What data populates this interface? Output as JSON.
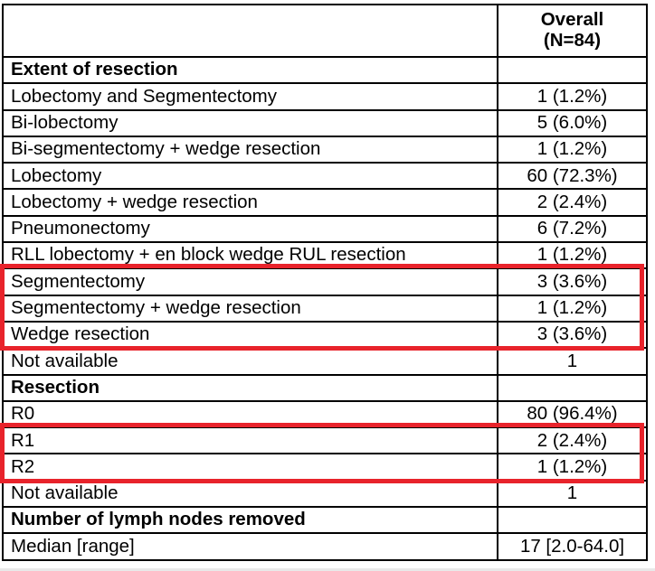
{
  "table": {
    "header": {
      "label": "",
      "value": "Overall\n(N=84)"
    },
    "rows": [
      {
        "label": "Extent of resection",
        "value": "",
        "bold": true,
        "group": null
      },
      {
        "label": "Lobectomy and Segmentectomy",
        "value": "1 (1.2%)",
        "bold": false,
        "group": null
      },
      {
        "label": "Bi-lobectomy",
        "value": "5 (6.0%)",
        "bold": false,
        "group": null
      },
      {
        "label": "Bi-segmentectomy + wedge resection",
        "value": "1 (1.2%)",
        "bold": false,
        "group": null
      },
      {
        "label": "Lobectomy",
        "value": "60 (72.3%)",
        "bold": false,
        "group": null
      },
      {
        "label": "Lobectomy + wedge resection",
        "value": "2 (2.4%)",
        "bold": false,
        "group": null
      },
      {
        "label": "Pneumonectomy",
        "value": "6 (7.2%)",
        "bold": false,
        "group": null
      },
      {
        "label": "RLL lobectomy + en block wedge RUL resection",
        "value": "1 (1.2%)",
        "bold": false,
        "group": null
      },
      {
        "label": "Segmentectomy",
        "value": "3 (3.6%)",
        "bold": false,
        "group": "highlight-1"
      },
      {
        "label": "Segmentectomy + wedge resection",
        "value": "1 (1.2%)",
        "bold": false,
        "group": "highlight-1"
      },
      {
        "label": "Wedge resection",
        "value": "3 (3.6%)",
        "bold": false,
        "group": "highlight-1"
      },
      {
        "label": "Not available",
        "value": "1",
        "bold": false,
        "group": null
      },
      {
        "label": "Resection",
        "value": "",
        "bold": true,
        "group": null
      },
      {
        "label": "R0",
        "value": "80 (96.4%)",
        "bold": false,
        "group": null
      },
      {
        "label": "R1",
        "value": "2 (2.4%)",
        "bold": false,
        "group": "highlight-2"
      },
      {
        "label": "R2",
        "value": "1 (1.2%)",
        "bold": false,
        "group": "highlight-2"
      },
      {
        "label": "Not available",
        "value": "1",
        "bold": false,
        "group": null
      },
      {
        "label": "Number of lymph nodes removed",
        "value": "",
        "bold": true,
        "group": null
      },
      {
        "label": "Median [range]",
        "value": "17 [2.0-64.0]",
        "bold": false,
        "group": null
      }
    ],
    "colors": {
      "highlight_border": "#e8232b",
      "table_border": "#000000",
      "text": "#000000"
    }
  }
}
